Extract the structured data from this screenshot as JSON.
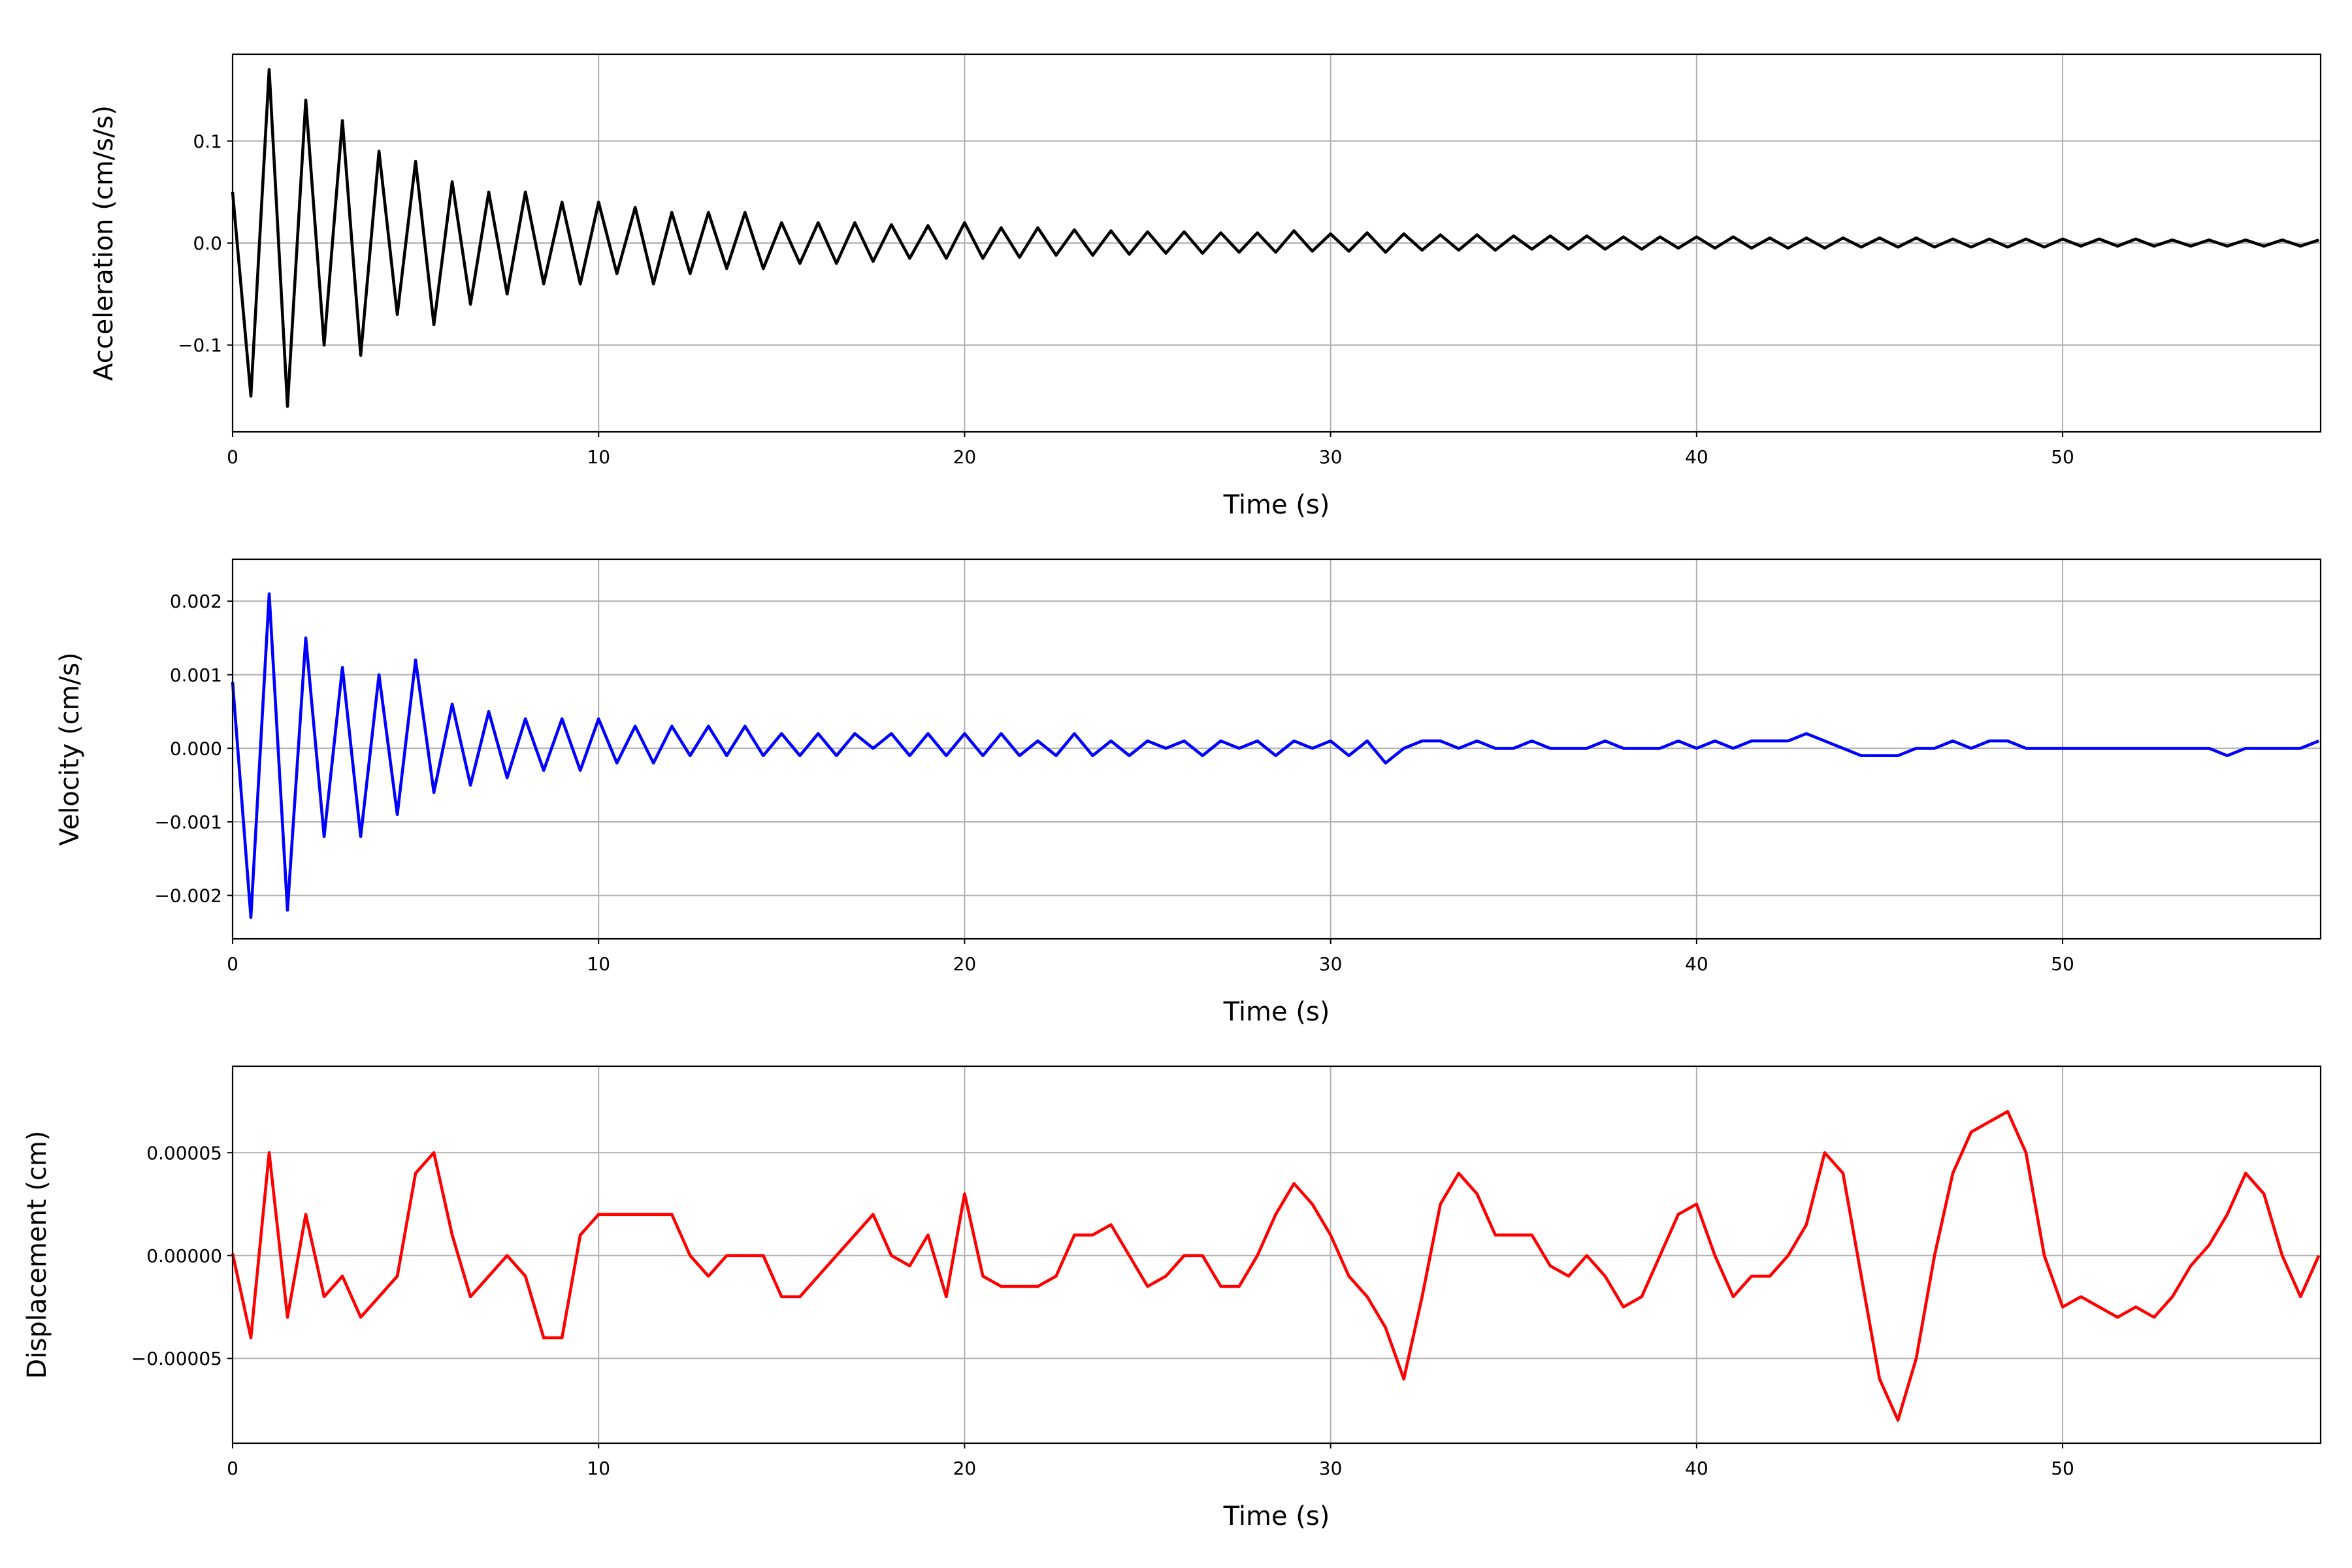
{
  "chart_data": [
    {
      "type": "line",
      "ylabel": "Acceleration (cm/s/s)",
      "xlabel": "Time (s)",
      "color": "#000000",
      "grid": true,
      "xlim": [
        0,
        57.05
      ],
      "xticks": [
        0,
        10,
        20,
        30,
        40,
        50
      ],
      "ylim": [
        -0.185,
        0.185
      ],
      "yticks": [
        {
          "value": -0.1,
          "label": "−0.1"
        },
        {
          "value": 0,
          "label": "0.0"
        },
        0.1
      ],
      "x": [
        0,
        0.5,
        1,
        1.5,
        2,
        2.5,
        3,
        3.5,
        4,
        4.5,
        5,
        5.5,
        6,
        6.5,
        7,
        7.5,
        8,
        8.5,
        9,
        9.5,
        10,
        10.5,
        11,
        11.5,
        12,
        12.5,
        13,
        13.5,
        14,
        14.5,
        15,
        15.5,
        16,
        16.5,
        17,
        17.5,
        18,
        18.5,
        19,
        19.5,
        20,
        20.5,
        21,
        21.5,
        22,
        22.5,
        23,
        23.5,
        24,
        24.5,
        25,
        25.5,
        26,
        26.5,
        27,
        27.5,
        28,
        28.5,
        29,
        29.5,
        30,
        30.5,
        31,
        31.5,
        32,
        32.5,
        33,
        33.5,
        34,
        34.5,
        35,
        35.5,
        36,
        36.5,
        37,
        37.5,
        38,
        38.5,
        39,
        39.5,
        40,
        40.5,
        41,
        41.5,
        42,
        42.5,
        43,
        43.5,
        44,
        44.5,
        45,
        45.5,
        46,
        46.5,
        47,
        47.5,
        48,
        48.5,
        49,
        49.5,
        50,
        50.5,
        51,
        51.5,
        52,
        52.5,
        53,
        53.5,
        54,
        54.5,
        55,
        55.5,
        56,
        56.5,
        57
      ],
      "values": [
        0.05,
        -0.15,
        0.17,
        -0.16,
        0.14,
        -0.1,
        0.12,
        -0.11,
        0.09,
        -0.07,
        0.08,
        -0.08,
        0.06,
        -0.06,
        0.05,
        -0.05,
        0.05,
        -0.04,
        0.04,
        -0.04,
        0.04,
        -0.03,
        0.035,
        -0.04,
        0.03,
        -0.03,
        0.03,
        -0.025,
        0.03,
        -0.025,
        0.02,
        -0.02,
        0.02,
        -0.02,
        0.02,
        -0.018,
        0.018,
        -0.015,
        0.017,
        -0.015,
        0.02,
        -0.015,
        0.015,
        -0.014,
        0.015,
        -0.012,
        0.013,
        -0.012,
        0.012,
        -0.011,
        0.011,
        -0.01,
        0.011,
        -0.01,
        0.01,
        -0.009,
        0.01,
        -0.009,
        0.012,
        -0.008,
        0.009,
        -0.008,
        0.01,
        -0.009,
        0.009,
        -0.007,
        0.008,
        -0.007,
        0.008,
        -0.007,
        0.007,
        -0.006,
        0.007,
        -0.006,
        0.007,
        -0.006,
        0.006,
        -0.006,
        0.006,
        -0.005,
        0.006,
        -0.005,
        0.006,
        -0.005,
        0.005,
        -0.005,
        0.005,
        -0.005,
        0.005,
        -0.004,
        0.005,
        -0.004,
        0.005,
        -0.004,
        0.004,
        -0.004,
        0.004,
        -0.004,
        0.004,
        -0.004,
        0.004,
        -0.003,
        0.004,
        -0.003,
        0.004,
        -0.003,
        0.003,
        -0.003,
        0.003,
        -0.003,
        0.003,
        -0.003,
        0.003,
        -0.003,
        0.003
      ]
    },
    {
      "type": "line",
      "ylabel": "Velocity (cm/s)",
      "xlabel": "Time (s)",
      "color": "#0000ff",
      "grid": true,
      "xlim": [
        0,
        57.05
      ],
      "xticks": [
        0,
        10,
        20,
        30,
        40,
        50
      ],
      "ylim": [
        -0.00259,
        0.00257
      ],
      "yticks": [
        {
          "value": -0.002,
          "label": "−0.002"
        },
        {
          "value": -0.001,
          "label": "−0.001"
        },
        {
          "value": 0,
          "label": "0.000"
        },
        0.001,
        0.002
      ],
      "x": [
        0,
        0.5,
        1,
        1.5,
        2,
        2.5,
        3,
        3.5,
        4,
        4.5,
        5,
        5.5,
        6,
        6.5,
        7,
        7.5,
        8,
        8.5,
        9,
        9.5,
        10,
        10.5,
        11,
        11.5,
        12,
        12.5,
        13,
        13.5,
        14,
        14.5,
        15,
        15.5,
        16,
        16.5,
        17,
        17.5,
        18,
        18.5,
        19,
        19.5,
        20,
        20.5,
        21,
        21.5,
        22,
        22.5,
        23,
        23.5,
        24,
        24.5,
        25,
        25.5,
        26,
        26.5,
        27,
        27.5,
        28,
        28.5,
        29,
        29.5,
        30,
        30.5,
        31,
        31.5,
        32,
        32.5,
        33,
        33.5,
        34,
        34.5,
        35,
        35.5,
        36,
        36.5,
        37,
        37.5,
        38,
        38.5,
        39,
        39.5,
        40,
        40.5,
        41,
        41.5,
        42,
        42.5,
        43,
        43.5,
        44,
        44.5,
        45,
        45.5,
        46,
        46.5,
        47,
        47.5,
        48,
        48.5,
        49,
        49.5,
        50,
        50.5,
        51,
        51.5,
        52,
        52.5,
        53,
        53.5,
        54,
        54.5,
        55,
        55.5,
        56,
        56.5,
        57
      ],
      "values": [
        0.0009,
        -0.0023,
        0.0021,
        -0.0022,
        0.0015,
        -0.0012,
        0.0011,
        -0.0012,
        0.001,
        -0.0009,
        0.0012,
        -0.0006,
        0.0006,
        -0.0005,
        0.0005,
        -0.0004,
        0.0004,
        -0.0003,
        0.0004,
        -0.0003,
        0.0004,
        -0.0002,
        0.0003,
        -0.0002,
        0.0003,
        -0.0001,
        0.0003,
        -0.0001,
        0.0003,
        -0.0001,
        0.0002,
        -0.0001,
        0.0002,
        -0.0001,
        0.0002,
        0.0,
        0.0002,
        -0.0001,
        0.0002,
        -0.0001,
        0.0002,
        -0.0001,
        0.0002,
        -0.0001,
        0.0001,
        -0.0001,
        0.0002,
        -0.0001,
        0.0001,
        -0.0001,
        0.0001,
        0.0,
        0.0001,
        -0.0001,
        0.0001,
        0.0,
        0.0001,
        -0.0001,
        0.0001,
        0.0,
        0.0001,
        -0.0001,
        0.0001,
        -0.0002,
        0.0,
        0.0001,
        0.0001,
        0.0,
        0.0001,
        0.0,
        0.0,
        0.0001,
        0.0,
        0.0,
        0.0,
        0.0001,
        0.0,
        0.0,
        0.0,
        0.0001,
        0.0,
        0.0001,
        0.0,
        0.0001,
        0.0001,
        0.0001,
        0.0002,
        0.0001,
        0.0,
        -0.0001,
        -0.0001,
        -0.0001,
        0.0,
        0.0,
        0.0001,
        0.0,
        0.0001,
        0.0001,
        0.0,
        0.0,
        0.0,
        0.0,
        0.0,
        0.0,
        0.0,
        0.0,
        0.0,
        0.0,
        0.0,
        -0.0001,
        0.0,
        0.0,
        0.0,
        0.0,
        0.0001
      ]
    },
    {
      "type": "line",
      "ylabel": "Displacement (cm)",
      "xlabel": "Time (s)",
      "color": "#ff0000",
      "grid": true,
      "xlim": [
        0,
        57.05
      ],
      "xticks": [
        0,
        10,
        20,
        30,
        40,
        50
      ],
      "ylim": [
        -9.12e-05,
        9.2e-05
      ],
      "yticks": [
        {
          "value": -5e-05,
          "label": "−0.00005"
        },
        {
          "value": 0,
          "label": "0.00000"
        },
        5e-05
      ],
      "x": [
        0,
        0.5,
        1,
        1.5,
        2,
        2.5,
        3,
        3.5,
        4,
        4.5,
        5,
        5.5,
        6,
        6.5,
        7,
        7.5,
        8,
        8.5,
        9,
        9.5,
        10,
        10.5,
        11,
        11.5,
        12,
        12.5,
        13,
        13.5,
        14,
        14.5,
        15,
        15.5,
        16,
        16.5,
        17,
        17.5,
        18,
        18.5,
        19,
        19.5,
        20,
        20.5,
        21,
        21.5,
        22,
        22.5,
        23,
        23.5,
        24,
        24.5,
        25,
        25.5,
        26,
        26.5,
        27,
        27.5,
        28,
        28.5,
        29,
        29.5,
        30,
        30.5,
        31,
        31.5,
        32,
        32.5,
        33,
        33.5,
        34,
        34.5,
        35,
        35.5,
        36,
        36.5,
        37,
        37.5,
        38,
        38.5,
        39,
        39.5,
        40,
        40.5,
        41,
        41.5,
        42,
        42.5,
        43,
        43.5,
        44,
        44.5,
        45,
        45.5,
        46,
        46.5,
        47,
        47.5,
        48,
        48.5,
        49,
        49.5,
        50,
        50.5,
        51,
        51.5,
        52,
        52.5,
        53,
        53.5,
        54,
        54.5,
        55,
        55.5,
        56,
        56.5,
        57
      ],
      "values": [
        1e-06,
        -4e-05,
        5e-05,
        -3e-05,
        2e-05,
        -2e-05,
        -1e-05,
        -3e-05,
        -2e-05,
        -1e-05,
        4e-05,
        5e-05,
        1e-05,
        -2e-05,
        -1e-05,
        0.0,
        -1e-05,
        -4e-05,
        -4e-05,
        1e-05,
        2e-05,
        2e-05,
        2e-05,
        2e-05,
        2e-05,
        0.0,
        -1e-05,
        0.0,
        0.0,
        0.0,
        -2e-05,
        -2e-05,
        -1e-05,
        0.0,
        1e-05,
        2e-05,
        0.0,
        -5e-06,
        1e-05,
        -2e-05,
        3e-05,
        -1e-05,
        -1.5e-05,
        -1.5e-05,
        -1.5e-05,
        -1e-05,
        1e-05,
        1e-05,
        1.5e-05,
        0.0,
        -1.5e-05,
        -1e-05,
        0.0,
        0.0,
        -1.5e-05,
        -1.5e-05,
        0.0,
        2e-05,
        3.5e-05,
        2.5e-05,
        1e-05,
        -1e-05,
        -2e-05,
        -3.5e-05,
        -6e-05,
        -2e-05,
        2.5e-05,
        4e-05,
        3e-05,
        1e-05,
        1e-05,
        1e-05,
        -5e-06,
        -1e-05,
        0.0,
        -1e-05,
        -2.5e-05,
        -2e-05,
        0.0,
        2e-05,
        2.5e-05,
        0.0,
        -2e-05,
        -1e-05,
        -1e-05,
        0.0,
        1.5e-05,
        5e-05,
        4e-05,
        -1e-05,
        -6e-05,
        -8e-05,
        -5e-05,
        0.0,
        4e-05,
        6e-05,
        6.5e-05,
        7e-05,
        5e-05,
        0.0,
        -2.5e-05,
        -2e-05,
        -2.5e-05,
        -3e-05,
        -2.5e-05,
        -3e-05,
        -2e-05,
        -5e-06,
        5e-06,
        2e-05,
        4e-05,
        3e-05,
        0.0,
        -2e-05,
        0.0
      ]
    }
  ]
}
